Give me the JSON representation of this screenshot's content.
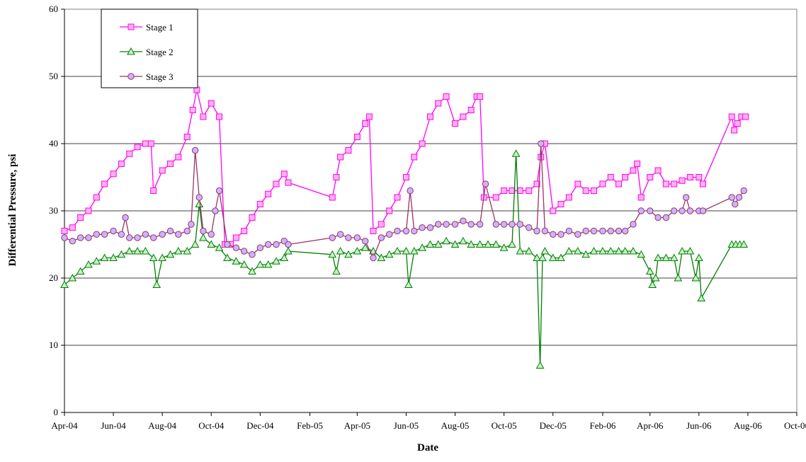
{
  "chart_data": {
    "type": "line",
    "title": "",
    "xlabel": "Date",
    "ylabel": "Differential Pressure, psi",
    "ylim": [
      0,
      60
    ],
    "yticks": [
      "0",
      "10",
      "20",
      "30",
      "40",
      "50",
      "60"
    ],
    "xlim": [
      "2004-04-01",
      "2006-10-01"
    ],
    "xticks": [
      {
        "date": "2004-04-01",
        "label": "Apr-04"
      },
      {
        "date": "2004-06-01",
        "label": "Jun-04"
      },
      {
        "date": "2004-08-01",
        "label": "Aug-04"
      },
      {
        "date": "2004-10-01",
        "label": "Oct-04"
      },
      {
        "date": "2004-12-01",
        "label": "Dec-04"
      },
      {
        "date": "2005-02-01",
        "label": "Feb-05"
      },
      {
        "date": "2005-04-01",
        "label": "Apr-05"
      },
      {
        "date": "2005-06-01",
        "label": "Jun-05"
      },
      {
        "date": "2005-08-01",
        "label": "Aug-05"
      },
      {
        "date": "2005-10-01",
        "label": "Oct-05"
      },
      {
        "date": "2005-12-01",
        "label": "Dec-05"
      },
      {
        "date": "2006-02-01",
        "label": "Feb-06"
      },
      {
        "date": "2006-04-01",
        "label": "Apr-06"
      },
      {
        "date": "2006-06-01",
        "label": "Jun-06"
      },
      {
        "date": "2006-08-01",
        "label": "Aug-06"
      },
      {
        "date": "2006-10-01",
        "label": "Oct-06"
      }
    ],
    "grid": {
      "horizontal": true,
      "vertical": false
    },
    "legend": {
      "placement": "top-left"
    },
    "series": [
      {
        "name": "Stage 1",
        "color": "#ff00ff",
        "marker": "square",
        "marker_fill": "#ffb3e6",
        "x": [
          "2004-04-01",
          "2004-04-11",
          "2004-04-21",
          "2004-05-01",
          "2004-05-11",
          "2004-05-21",
          "2004-06-01",
          "2004-06-11",
          "2004-06-21",
          "2004-07-01",
          "2004-07-11",
          "2004-07-18",
          "2004-07-21",
          "2004-08-01",
          "2004-08-11",
          "2004-08-21",
          "2004-09-01",
          "2004-09-08",
          "2004-09-13",
          "2004-09-21",
          "2004-10-01",
          "2004-10-11",
          "2004-10-18",
          "2004-10-25",
          "2004-11-01",
          "2004-11-11",
          "2004-11-21",
          "2004-12-01",
          "2004-12-11",
          "2004-12-21",
          "2004-12-31",
          "2005-01-05",
          "2005-03-01",
          "2005-03-06",
          "2005-03-11",
          "2005-03-21",
          "2005-04-01",
          "2005-04-11",
          "2005-04-16",
          "2005-04-21",
          "2005-05-01",
          "2005-05-11",
          "2005-05-21",
          "2005-06-01",
          "2005-06-11",
          "2005-06-21",
          "2005-07-01",
          "2005-07-11",
          "2005-07-21",
          "2005-08-01",
          "2005-08-11",
          "2005-08-21",
          "2005-08-28",
          "2005-09-01",
          "2005-09-06",
          "2005-09-21",
          "2005-10-01",
          "2005-10-11",
          "2005-10-21",
          "2005-11-01",
          "2005-11-11",
          "2005-11-16",
          "2005-11-21",
          "2005-12-01",
          "2005-12-11",
          "2005-12-21",
          "2006-01-01",
          "2006-01-11",
          "2006-01-21",
          "2006-02-01",
          "2006-02-11",
          "2006-02-21",
          "2006-03-01",
          "2006-03-11",
          "2006-03-16",
          "2006-03-21",
          "2006-04-01",
          "2006-04-11",
          "2006-04-21",
          "2006-05-01",
          "2006-05-11",
          "2006-05-21",
          "2006-06-01",
          "2006-06-06",
          "2006-07-12",
          "2006-07-15",
          "2006-07-19",
          "2006-07-24",
          "2006-07-29"
        ],
        "values": [
          27,
          27.5,
          29,
          30,
          32,
          34,
          35.5,
          37,
          38.5,
          39.5,
          40,
          40,
          33,
          36,
          37,
          38,
          41,
          45,
          48,
          44,
          46,
          44,
          25,
          25,
          26,
          27,
          29,
          31,
          32.5,
          34,
          35.5,
          34.2,
          32,
          35,
          38,
          39,
          41,
          43,
          44,
          27,
          28,
          30,
          32,
          35,
          38,
          40,
          44,
          46,
          47,
          43,
          44,
          45,
          47,
          47,
          32,
          32,
          33,
          33,
          33,
          33,
          34,
          38,
          40,
          30,
          31,
          32,
          34,
          33,
          33,
          34,
          35,
          34,
          35,
          36,
          37,
          32,
          35,
          36,
          34,
          34,
          34.5,
          35,
          35,
          34,
          44,
          42,
          43,
          44,
          44
        ],
        "annotations": []
      },
      {
        "name": "Stage 2",
        "color": "#008000",
        "marker": "triangle",
        "marker_fill": "#c8f0c8",
        "x": [
          "2004-04-01",
          "2004-04-11",
          "2004-04-21",
          "2004-05-01",
          "2004-05-11",
          "2004-05-21",
          "2004-06-01",
          "2004-06-11",
          "2004-06-21",
          "2004-07-01",
          "2004-07-11",
          "2004-07-21",
          "2004-07-25",
          "2004-08-01",
          "2004-08-11",
          "2004-08-21",
          "2004-09-01",
          "2004-09-11",
          "2004-09-16",
          "2004-09-21",
          "2004-10-01",
          "2004-10-11",
          "2004-10-21",
          "2004-11-01",
          "2004-11-11",
          "2004-11-21",
          "2004-12-01",
          "2004-12-11",
          "2004-12-21",
          "2004-12-31",
          "2005-01-05",
          "2005-03-01",
          "2005-03-06",
          "2005-03-11",
          "2005-03-21",
          "2005-04-01",
          "2005-04-11",
          "2005-04-21",
          "2005-05-01",
          "2005-05-11",
          "2005-05-21",
          "2005-06-01",
          "2005-06-04",
          "2005-06-11",
          "2005-06-21",
          "2005-07-01",
          "2005-07-11",
          "2005-07-21",
          "2005-08-01",
          "2005-08-11",
          "2005-08-21",
          "2005-09-01",
          "2005-09-11",
          "2005-09-21",
          "2005-10-01",
          "2005-10-11",
          "2005-10-16",
          "2005-10-21",
          "2005-11-01",
          "2005-11-11",
          "2005-11-15",
          "2005-11-18",
          "2005-11-21",
          "2005-12-01",
          "2005-12-11",
          "2005-12-21",
          "2006-01-01",
          "2006-01-11",
          "2006-01-21",
          "2006-02-01",
          "2006-02-11",
          "2006-02-21",
          "2006-03-01",
          "2006-03-11",
          "2006-03-21",
          "2006-04-01",
          "2006-04-04",
          "2006-04-08",
          "2006-04-11",
          "2006-04-21",
          "2006-05-01",
          "2006-05-06",
          "2006-05-11",
          "2006-05-21",
          "2006-05-28",
          "2006-06-01",
          "2006-06-04",
          "2006-07-12",
          "2006-07-17",
          "2006-07-22",
          "2006-07-27"
        ],
        "values": [
          19,
          20,
          21,
          22,
          22.5,
          23,
          23,
          23.5,
          24,
          24,
          24,
          23,
          19,
          23,
          23.5,
          24,
          24,
          25,
          31,
          26,
          25,
          24.5,
          23,
          22.5,
          22,
          21,
          22,
          22,
          22.5,
          23,
          24,
          23.5,
          21,
          24,
          23.5,
          24,
          24.5,
          24,
          23,
          23.5,
          24,
          24,
          19,
          24,
          24.5,
          25,
          25,
          25.5,
          25,
          25.5,
          25,
          25,
          25,
          25,
          24.5,
          25,
          38.5,
          24,
          24,
          23,
          7,
          23,
          24,
          23,
          23,
          24,
          24,
          23.5,
          24,
          24,
          24,
          24,
          24,
          24,
          23.5,
          21,
          19,
          20,
          23,
          23,
          23,
          20,
          24,
          24,
          20,
          23,
          17,
          25,
          25,
          25,
          25
        ],
        "annotations": []
      },
      {
        "name": "Stage 3",
        "color": "#993366",
        "marker": "circle",
        "marker_fill": "#ccb3ff",
        "x": [
          "2004-04-01",
          "2004-04-11",
          "2004-04-21",
          "2004-05-01",
          "2004-05-11",
          "2004-05-21",
          "2004-06-01",
          "2004-06-11",
          "2004-06-16",
          "2004-06-21",
          "2004-07-01",
          "2004-07-11",
          "2004-07-21",
          "2004-08-01",
          "2004-08-11",
          "2004-08-21",
          "2004-09-01",
          "2004-09-06",
          "2004-09-11",
          "2004-09-16",
          "2004-09-21",
          "2004-10-01",
          "2004-10-06",
          "2004-10-11",
          "2004-10-21",
          "2004-11-01",
          "2004-11-11",
          "2004-11-21",
          "2004-12-01",
          "2004-12-11",
          "2004-12-21",
          "2004-12-31",
          "2005-01-05",
          "2005-03-01",
          "2005-03-11",
          "2005-03-21",
          "2005-04-01",
          "2005-04-11",
          "2005-04-21",
          "2005-05-01",
          "2005-05-11",
          "2005-05-21",
          "2005-06-01",
          "2005-06-06",
          "2005-06-11",
          "2005-06-21",
          "2005-07-01",
          "2005-07-11",
          "2005-07-21",
          "2005-08-01",
          "2005-08-11",
          "2005-08-21",
          "2005-09-01",
          "2005-09-08",
          "2005-09-21",
          "2005-10-01",
          "2005-10-11",
          "2005-10-21",
          "2005-11-01",
          "2005-11-11",
          "2005-11-16",
          "2005-11-21",
          "2005-12-01",
          "2005-12-11",
          "2005-12-21",
          "2006-01-01",
          "2006-01-11",
          "2006-01-21",
          "2006-02-01",
          "2006-02-11",
          "2006-02-21",
          "2006-03-01",
          "2006-03-11",
          "2006-03-21",
          "2006-04-01",
          "2006-04-11",
          "2006-04-21",
          "2006-05-01",
          "2006-05-11",
          "2006-05-16",
          "2006-05-21",
          "2006-06-01",
          "2006-06-06",
          "2006-07-12",
          "2006-07-16",
          "2006-07-21",
          "2006-07-27"
        ],
        "values": [
          26,
          25.5,
          26,
          26,
          26.5,
          26.5,
          27,
          26.5,
          29,
          26,
          26,
          26.5,
          26,
          26.5,
          27,
          26.5,
          27,
          28,
          39,
          32,
          27,
          26.5,
          30,
          33,
          25,
          24.5,
          24,
          23.5,
          24.5,
          25,
          25,
          25.5,
          25,
          26,
          26.5,
          26,
          26,
          25.5,
          23,
          26,
          26.5,
          27,
          27,
          33,
          27,
          27.5,
          27.5,
          28,
          28,
          28,
          28.5,
          28,
          28,
          34,
          28,
          28,
          28,
          28,
          27.5,
          27,
          40,
          27,
          26.5,
          26.5,
          27,
          26.5,
          27,
          27,
          27,
          27,
          27,
          27,
          28,
          30,
          30,
          29,
          29,
          30,
          30,
          32,
          30,
          30,
          30,
          32,
          31,
          32,
          33
        ],
        "annotations": []
      }
    ]
  }
}
